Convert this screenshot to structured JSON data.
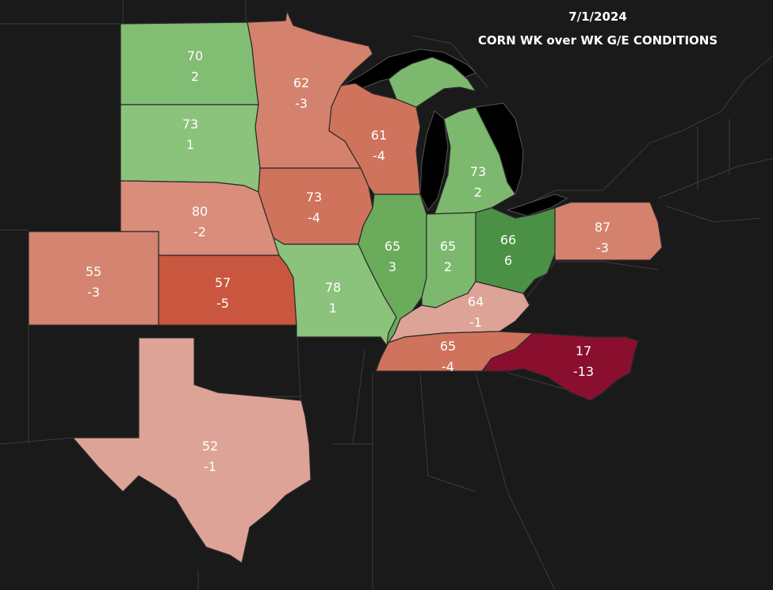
{
  "title": {
    "date": "7/1/2024",
    "subtitle": "CORN WK over WK G/E CONDITIONS"
  },
  "colors": {
    "background": "#1a1a1a",
    "green_light": "#8cc37c",
    "green_mid": "#69ae5c",
    "green_dark": "#4a9146",
    "red_pale": "#d99888",
    "red_light": "#d98875",
    "red_mid": "#cf6e5a",
    "red_strong": "#c5503e",
    "red_deep": "#8a0f2e",
    "lake": "#000000"
  },
  "states": [
    {
      "id": "north-dakota",
      "condition": "70",
      "change": "2",
      "color": "#82bd74"
    },
    {
      "id": "south-dakota",
      "condition": "73",
      "change": "1",
      "color": "#8cc37c"
    },
    {
      "id": "nebraska",
      "condition": "80",
      "change": "-2",
      "color": "#d98d7a"
    },
    {
      "id": "colorado",
      "condition": "55",
      "change": "-3",
      "color": "#d48470"
    },
    {
      "id": "kansas",
      "condition": "57",
      "change": "-5",
      "color": "#c9573f"
    },
    {
      "id": "minnesota",
      "condition": "62",
      "change": "-3",
      "color": "#d4826d"
    },
    {
      "id": "iowa",
      "condition": "73",
      "change": "-4",
      "color": "#cf735c"
    },
    {
      "id": "missouri",
      "condition": "78",
      "change": "1",
      "color": "#8cc37c"
    },
    {
      "id": "wisconsin",
      "condition": "61",
      "change": "-4",
      "color": "#cf735c"
    },
    {
      "id": "illinois",
      "condition": "65",
      "change": "3",
      "color": "#6aab5c"
    },
    {
      "id": "michigan",
      "condition": "73",
      "change": "2",
      "color": "#7cb96e"
    },
    {
      "id": "indiana",
      "condition": "65",
      "change": "2",
      "color": "#7cb96e"
    },
    {
      "id": "ohio",
      "condition": "66",
      "change": "6",
      "color": "#4a9146"
    },
    {
      "id": "pennsylvania",
      "condition": "87",
      "change": "-3",
      "color": "#d4826d"
    },
    {
      "id": "kentucky",
      "condition": "64",
      "change": "-1",
      "color": "#dea397"
    },
    {
      "id": "tennessee",
      "condition": "65",
      "change": "-4",
      "color": "#cf735c"
    },
    {
      "id": "north-carolina",
      "condition": "17",
      "change": "-13",
      "color": "#8a0f2e"
    },
    {
      "id": "texas",
      "condition": "52",
      "change": "-1",
      "color": "#dea397"
    }
  ]
}
